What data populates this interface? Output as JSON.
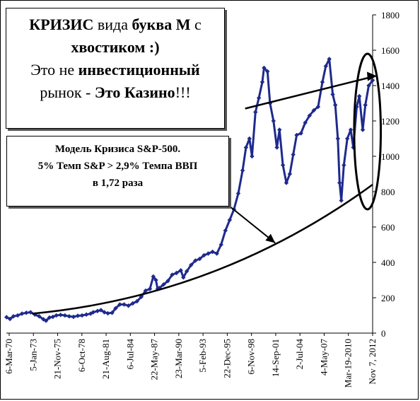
{
  "chart_data": {
    "type": "line",
    "x_ticks": [
      "6-Mar-70",
      "5-Jan-73",
      "21-Nov-75",
      "6-Oct-78",
      "21-Aug-81",
      "6-Jul-84",
      "22-May-87",
      "23-Mar-90",
      "5-Feb-93",
      "22-Dec-95",
      "6-Nov-98",
      "14-Sep-01",
      "2-Jul-04",
      "4-May-07",
      "Mar-19-2010",
      "Nov 7, 2012"
    ],
    "y_ticks": [
      0,
      200,
      400,
      600,
      800,
      1000,
      1200,
      1400,
      1600,
      1800
    ],
    "ylim": [
      0,
      1800
    ],
    "xlim": [
      1970.18,
      2012.85
    ],
    "y_axis_position": "right",
    "series": [
      {
        "color": "#1f2a8c",
        "x": [
          1970.2,
          1970.6,
          1971.0,
          1971.5,
          1972.0,
          1972.5,
          1973.0,
          1973.5,
          1974.0,
          1974.5,
          1974.8,
          1975.2,
          1975.6,
          1976.0,
          1976.5,
          1977.0,
          1977.5,
          1978.0,
          1978.5,
          1979.0,
          1979.5,
          1980.0,
          1980.3,
          1980.8,
          1981.2,
          1981.6,
          1982.0,
          1982.5,
          1982.9,
          1983.4,
          1983.9,
          1984.4,
          1984.9,
          1985.4,
          1985.9,
          1986.4,
          1986.9,
          1987.3,
          1987.6,
          1987.8,
          1988.0,
          1988.5,
          1989.0,
          1989.5,
          1990.0,
          1990.5,
          1990.8,
          1991.2,
          1991.7,
          1992.2,
          1992.7,
          1993.2,
          1993.7,
          1994.2,
          1994.7,
          1995.2,
          1995.7,
          1996.2,
          1996.7,
          1997.2,
          1997.7,
          1998.1,
          1998.5,
          1998.8,
          1999.2,
          1999.6,
          2000.0,
          2000.2,
          2000.6,
          2000.9,
          2001.3,
          2001.7,
          2002.0,
          2002.4,
          2002.8,
          2003.2,
          2003.6,
          2004.0,
          2004.5,
          2005.0,
          2005.5,
          2006.0,
          2006.5,
          2007.0,
          2007.4,
          2007.8,
          2008.2,
          2008.5,
          2008.8,
          2009.0,
          2009.2,
          2009.5,
          2009.9,
          2010.3,
          2010.6,
          2011.0,
          2011.3,
          2011.7,
          2012.0,
          2012.4,
          2012.85
        ],
        "y": [
          90,
          80,
          95,
          100,
          110,
          115,
          118,
          105,
          95,
          78,
          70,
          88,
          92,
          100,
          103,
          100,
          95,
          92,
          98,
          100,
          105,
          110,
          118,
          125,
          130,
          118,
          112,
          115,
          140,
          162,
          162,
          155,
          168,
          180,
          205,
          240,
          250,
          320,
          300,
          250,
          255,
          275,
          295,
          330,
          340,
          355,
          315,
          350,
          385,
          410,
          420,
          440,
          450,
          460,
          450,
          500,
          580,
          640,
          700,
          790,
          920,
          1050,
          1100,
          1000,
          1250,
          1330,
          1420,
          1500,
          1480,
          1300,
          1200,
          1050,
          1150,
          950,
          850,
          900,
          1010,
          1120,
          1130,
          1190,
          1230,
          1260,
          1280,
          1420,
          1510,
          1550,
          1350,
          1290,
          1100,
          850,
          750,
          950,
          1100,
          1150,
          1050,
          1280,
          1340,
          1150,
          1290,
          1400,
          1430
        ]
      }
    ],
    "annotations": {
      "trend_curve": {
        "x": [
          1973.2,
          2012.85
        ],
        "y": [
          110,
          840
        ]
      },
      "upper_line": {
        "x": [
          1998.0,
          2012.85
        ],
        "y": [
          1270,
          1450
        ]
      },
      "arrow": {
        "x": [
          1993.3,
          2001.5
        ],
        "y": [
          830,
          510
        ]
      },
      "ellipse": {
        "cx": 2012.25,
        "cy": 1140,
        "rx": 1.55,
        "ry": 440
      }
    }
  },
  "note_top": {
    "w1": "КРИЗИС",
    "w2": " вида ",
    "w3": "буква М",
    "w4": " с ",
    "w5": "хвостиком :)",
    "w6": "Это не ",
    "w7": "инвестиционный",
    "w8": "рынок - ",
    "w9": "Это Казино",
    "w10": "!!!"
  },
  "note_model": {
    "line1": "Модель Кризиса S&P-500.",
    "line2": "5%  Темп S&P > 2,9% Темпа ВВП",
    "line3": "в 1,72 раза"
  }
}
